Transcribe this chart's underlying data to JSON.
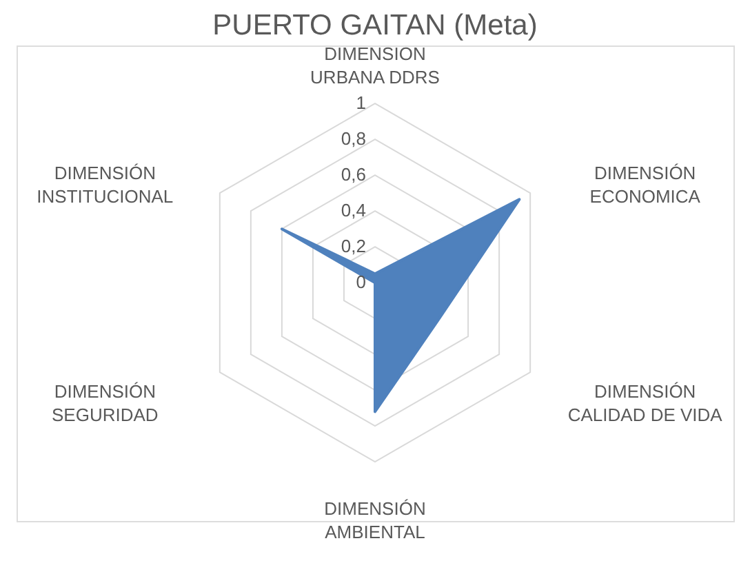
{
  "chart_data": {
    "type": "radar",
    "title": "PUERTO GAITAN (Meta)",
    "categories": [
      "DIMENSION URBANA DDRS",
      "DIMENSIÓN ECONOMICA",
      "DIMENSIÓN CALIDAD DE VIDA",
      "DIMENSIÓN AMBIENTAL",
      "DIMENSIÓN SEGURIDAD",
      "DIMENSIÓN INSTITUCIONAL"
    ],
    "series": [
      {
        "color": "#4f81bd",
        "values": [
          0.05,
          0.93,
          0.41,
          0.72,
          0,
          0.6
        ]
      }
    ],
    "ylim": [
      0,
      1
    ],
    "yticks": [
      0,
      {
        "value": 0.2,
        "label": "0,2"
      },
      {
        "value": 0.4,
        "label": "0,4"
      },
      {
        "value": 0.6,
        "label": "0,6"
      },
      {
        "value": 0.8,
        "label": "0,8"
      },
      1
    ],
    "grid": true
  }
}
